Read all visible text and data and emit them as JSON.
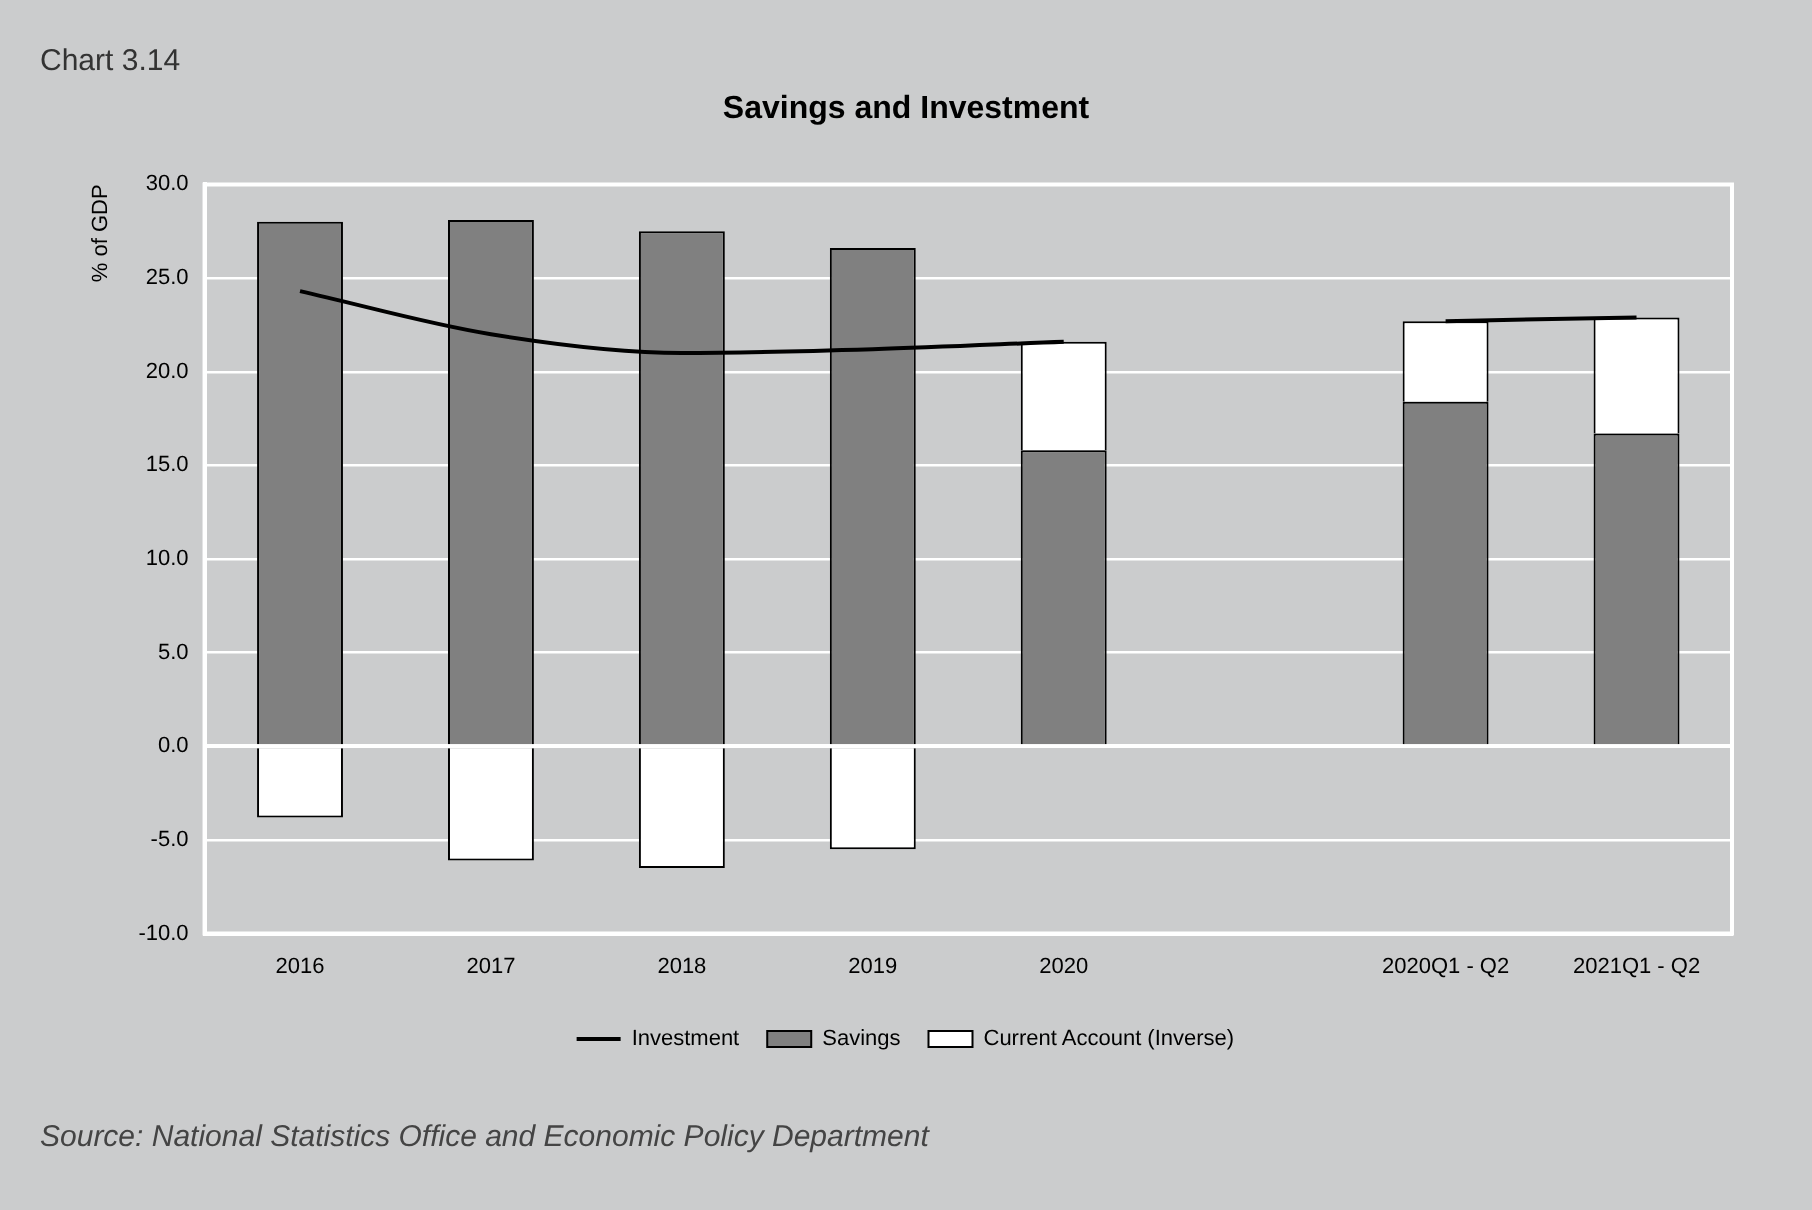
{
  "chart_data": {
    "type": "bar",
    "title": "Savings and Investment",
    "subtitle": "Chart 3.14",
    "ylabel": "% of GDP",
    "categories": [
      "2016",
      "2017",
      "2018",
      "2019",
      "2020",
      null,
      "2020Q1 - Q2",
      "2021Q1 - Q2"
    ],
    "stacked": true,
    "series": [
      {
        "name": "Savings",
        "color": "#808080",
        "values": [
          28.0,
          28.1,
          27.5,
          26.6,
          15.8,
          null,
          18.4,
          16.7
        ]
      },
      {
        "name": "Current Account (Inverse)",
        "color": "#ffffff",
        "values": [
          -3.8,
          -6.1,
          -6.5,
          -5.5,
          5.8,
          null,
          4.3,
          6.2
        ]
      },
      {
        "name": "Investment",
        "type": "line",
        "color": "#000000",
        "values": [
          24.3,
          22.0,
          21.0,
          21.2,
          21.6,
          null,
          22.7,
          22.9
        ]
      }
    ],
    "ylim": [
      -10,
      30
    ],
    "yticks": [
      {
        "value": -10,
        "label": "-10.0"
      },
      {
        "value": -5,
        "label": "-5.0"
      },
      {
        "value": 0,
        "label": "0.0"
      },
      {
        "value": 5,
        "label": "5.0"
      },
      {
        "value": 10,
        "label": "10.0"
      },
      {
        "value": 15,
        "label": "15.0"
      },
      {
        "value": 20,
        "label": "20.0"
      },
      {
        "value": 25,
        "label": "25.0"
      },
      {
        "value": 30,
        "label": "30.0"
      }
    ],
    "grid": "y",
    "legend": "bottom",
    "marker": "none",
    "annotations": [
      "Source: National Statistics Office and Economic Policy Department"
    ]
  }
}
